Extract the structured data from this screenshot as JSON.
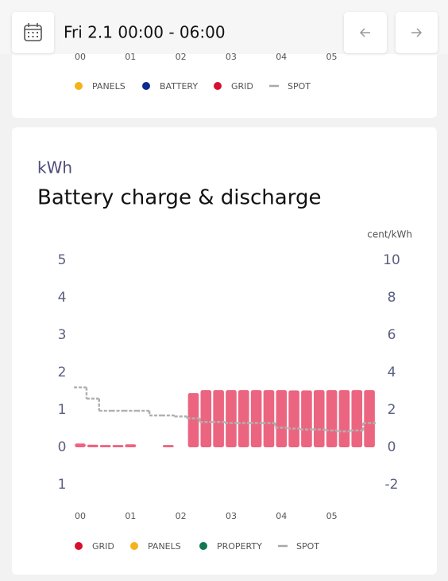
{
  "header": {
    "date_range": "Fri 2.1 00:00 - 06:00"
  },
  "top_chart": {
    "x_labels": [
      "00",
      "01",
      "02",
      "03",
      "04",
      "05"
    ],
    "legend": [
      {
        "name": "PANELS",
        "color": "#f5b21c"
      },
      {
        "name": "BATTERY",
        "color": "#0d2a8f"
      },
      {
        "name": "GRID",
        "color": "#d6102f"
      },
      {
        "name": "SPOT",
        "color": "#a8a8a8"
      }
    ]
  },
  "chart_data": {
    "type": "bar",
    "y_label": "kWh",
    "title": "Battery charge & discharge",
    "y2_label": "cent/kWh",
    "categories": [
      "00",
      null,
      null,
      null,
      "01",
      null,
      null,
      null,
      "02",
      null,
      null,
      null,
      "03",
      null,
      null,
      null,
      "04",
      null,
      null,
      null,
      "05",
      null,
      null,
      null
    ],
    "series": [
      {
        "name": "GRID",
        "color": "#ec6580",
        "values": [
          0.1,
          0.07,
          0.06,
          0.06,
          0.08,
          0,
          0,
          0.06,
          0,
          1.45,
          1.53,
          1.53,
          1.53,
          1.53,
          1.53,
          1.53,
          1.53,
          1.52,
          1.52,
          1.53,
          1.53,
          1.53,
          1.53,
          1.53
        ]
      },
      {
        "name": "SPOT",
        "color": "#b0b0b0",
        "axis": "y2",
        "values": [
          3.2,
          2.6,
          1.95,
          1.95,
          1.95,
          1.95,
          1.7,
          1.7,
          1.65,
          1.55,
          1.35,
          1.35,
          1.3,
          1.3,
          1.3,
          1.3,
          1.05,
          1.0,
          0.95,
          0.95,
          0.9,
          0.85,
          0.9,
          1.3
        ]
      }
    ],
    "ylim": [
      -1,
      5
    ],
    "yticks": [
      {
        "value": -1,
        "label": "1"
      },
      0,
      1,
      2,
      3,
      4,
      5
    ],
    "y2lim": [
      -2,
      10
    ],
    "y2ticks": [
      -2,
      0,
      2,
      4,
      6,
      8,
      10
    ],
    "legend": [
      {
        "name": "GRID",
        "color": "#d6102f"
      },
      {
        "name": "PANELS",
        "color": "#f5b21c"
      },
      {
        "name": "PROPERTY",
        "color": "#0f7a52"
      },
      {
        "name": "SPOT",
        "color": "#a8a8a8"
      }
    ]
  }
}
